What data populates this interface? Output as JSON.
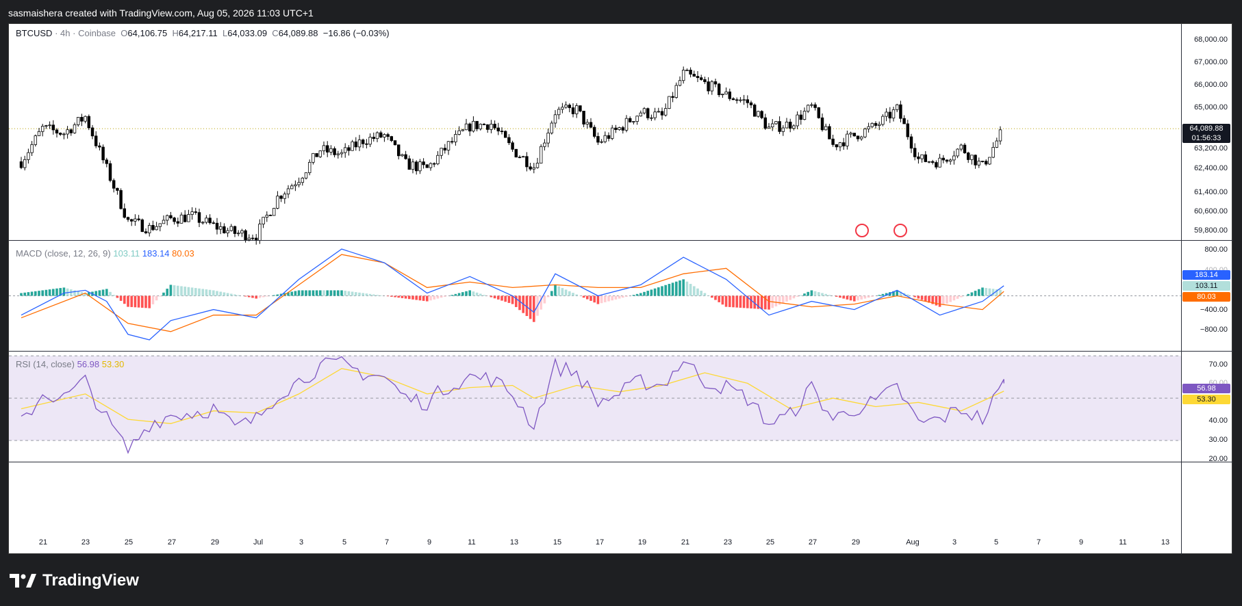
{
  "header": {
    "attribution": "sasmaishera created with TradingView.com, Aug 05, 2026 11:03 UTC+1"
  },
  "footer": {
    "brand": "TradingView"
  },
  "colors": {
    "up": "#ffffff",
    "down": "#000000",
    "macd_line": "#2962ff",
    "signal_line": "#ff6d00",
    "hist_up_strong": "#26a69a",
    "hist_up_weak": "#b2dfdb",
    "hist_down_strong": "#ff5252",
    "hist_down_weak": "#ffcdd2",
    "rsi_line": "#7e57c2",
    "rsi_ma": "#fdd835",
    "rsi_band": "#ede7f6"
  },
  "price_pane": {
    "symbol": "BTCUSD",
    "sep1": "·",
    "interval": "4h",
    "sep2": "·",
    "exchange": "Coinbase",
    "o_label": "O",
    "o_val": "64,106.75",
    "h_label": "H",
    "h_val": "64,217.11",
    "l_label": "L",
    "l_val": "64,033.09",
    "c_label": "C",
    "c_val": "64,089.88",
    "change": "−16.86 (−0.03%)",
    "last_price": "64,089.88",
    "countdown": "01:56:33",
    "axis_ticks": [
      "68,000.00",
      "67,000.00",
      "66,000.00",
      "65,000.00",
      "63,200.00",
      "62,400.00",
      "61,400.00",
      "60,600.00",
      "59,800.00"
    ]
  },
  "macd_pane": {
    "title": "MACD (close, 12, 26, 9)",
    "hist_val": "103.11",
    "macd_val": "183.14",
    "signal_val": "80.03",
    "axis_ticks": [
      "800.00",
      "400.00",
      "−400.00",
      "−800.00"
    ]
  },
  "rsi_pane": {
    "title": "RSI (14, close)",
    "rsi_val": "56.98",
    "ma_val": "53.30",
    "axis_ticks": [
      "70.00",
      "60.00",
      "40.00",
      "30.00",
      "20.00"
    ]
  },
  "time_axis": [
    "21",
    "23",
    "25",
    "27",
    "29",
    "Jul",
    "3",
    "5",
    "7",
    "9",
    "11",
    "13",
    "15",
    "17",
    "19",
    "21",
    "23",
    "25",
    "27",
    "29",
    "Aug",
    "3",
    "5",
    "7",
    "9",
    "11",
    "13"
  ],
  "chart_data": [
    {
      "type": "candlestick",
      "title": "BTCUSD · 4h · Coinbase",
      "x_range": [
        "Jun 20, 2026",
        "Aug 14, 2026"
      ],
      "ylim": [
        59400,
        68500
      ],
      "last_close": 64089.88,
      "close_path": [
        [
          "Jun 20",
          62700
        ],
        [
          "Jun 21",
          64100
        ],
        [
          "Jun 22",
          63900
        ],
        [
          "Jun 23",
          64600
        ],
        [
          "Jun 24",
          62400
        ],
        [
          "Jun 25",
          60200
        ],
        [
          "Jun 26",
          59900
        ],
        [
          "Jun 27",
          60300
        ],
        [
          "Jun 28",
          60400
        ],
        [
          "Jun 29",
          60000
        ],
        [
          "Jun 30",
          59700
        ],
        [
          "Jul 1",
          59600
        ],
        [
          "Jul 2",
          61200
        ],
        [
          "Jul 3",
          62000
        ],
        [
          "Jul 4",
          63200
        ],
        [
          "Jul 5",
          63000
        ],
        [
          "Jul 6",
          63600
        ],
        [
          "Jul 7",
          63800
        ],
        [
          "Jul 8",
          62600
        ],
        [
          "Jul 9",
          62400
        ],
        [
          "Jul 10",
          63400
        ],
        [
          "Jul 11",
          64200
        ],
        [
          "Jul 12",
          64300
        ],
        [
          "Jul 13",
          63200
        ],
        [
          "Jul 14",
          62500
        ],
        [
          "Jul 15",
          64800
        ],
        [
          "Jul 16",
          64900
        ],
        [
          "Jul 17",
          63500
        ],
        [
          "Jul 18",
          64100
        ],
        [
          "Jul 19",
          64800
        ],
        [
          "Jul 20",
          64600
        ],
        [
          "Jul 21",
          66400
        ],
        [
          "Jul 22",
          66000
        ],
        [
          "Jul 23",
          65500
        ],
        [
          "Jul 24",
          65200
        ],
        [
          "Jul 25",
          64100
        ],
        [
          "Jul 26",
          64300
        ],
        [
          "Jul 27",
          65000
        ],
        [
          "Jul 28",
          63400
        ],
        [
          "Jul 29",
          63800
        ],
        [
          "Jul 30",
          64200
        ],
        [
          "Jul 31",
          64900
        ],
        [
          "Aug 1",
          62800
        ],
        [
          "Aug 2",
          62700
        ],
        [
          "Aug 3",
          63300
        ],
        [
          "Aug 4",
          62500
        ],
        [
          "Aug 5",
          64100
        ]
      ]
    },
    {
      "type": "line",
      "title": "MACD (close, 12, 26, 9)",
      "ylim": [
        -1000,
        1000
      ],
      "series": [
        {
          "name": "MACD",
          "values": [
            [
              "Jun 20",
              -350
            ],
            [
              "Jun 22",
              50
            ],
            [
              "Jun 23",
              100
            ],
            [
              "Jun 24",
              -100
            ],
            [
              "Jun 25",
              -700
            ],
            [
              "Jun 26",
              -800
            ],
            [
              "Jun 27",
              -450
            ],
            [
              "Jun 29",
              -250
            ],
            [
              "Jul 1",
              -400
            ],
            [
              "Jul 3",
              300
            ],
            [
              "Jul 5",
              850
            ],
            [
              "Jul 7",
              600
            ],
            [
              "Jul 9",
              50
            ],
            [
              "Jul 11",
              350
            ],
            [
              "Jul 13",
              0
            ],
            [
              "Jul 14",
              -300
            ],
            [
              "Jul 15",
              400
            ],
            [
              "Jul 17",
              0
            ],
            [
              "Jul 19",
              200
            ],
            [
              "Jul 21",
              700
            ],
            [
              "Jul 23",
              300
            ],
            [
              "Jul 25",
              -350
            ],
            [
              "Jul 27",
              -100
            ],
            [
              "Jul 29",
              -250
            ],
            [
              "Jul 31",
              100
            ],
            [
              "Aug 2",
              -350
            ],
            [
              "Aug 4",
              -100
            ],
            [
              "Aug 5",
              183.14
            ]
          ]
        },
        {
          "name": "Signal",
          "values": [
            [
              "Jun 20",
              -400
            ],
            [
              "Jun 23",
              50
            ],
            [
              "Jun 25",
              -500
            ],
            [
              "Jun 27",
              -650
            ],
            [
              "Jun 29",
              -350
            ],
            [
              "Jul 1",
              -350
            ],
            [
              "Jul 3",
              200
            ],
            [
              "Jul 5",
              750
            ],
            [
              "Jul 7",
              600
            ],
            [
              "Jul 9",
              150
            ],
            [
              "Jul 11",
              250
            ],
            [
              "Jul 13",
              150
            ],
            [
              "Jul 15",
              200
            ],
            [
              "Jul 17",
              150
            ],
            [
              "Jul 19",
              150
            ],
            [
              "Jul 21",
              400
            ],
            [
              "Jul 23",
              500
            ],
            [
              "Jul 25",
              -100
            ],
            [
              "Jul 27",
              -200
            ],
            [
              "Jul 29",
              -150
            ],
            [
              "Jul 31",
              0
            ],
            [
              "Aug 2",
              -150
            ],
            [
              "Aug 4",
              -250
            ],
            [
              "Aug 5",
              80.03
            ]
          ]
        }
      ],
      "histogram_last": 103.11
    },
    {
      "type": "line",
      "title": "RSI (14, close)",
      "ylim": [
        20,
        72
      ],
      "bands": [
        30,
        50,
        70
      ],
      "series": [
        {
          "name": "RSI",
          "values": [
            [
              "Jun 20",
              38
            ],
            [
              "Jun 21",
              52
            ],
            [
              "Jun 22",
              50
            ],
            [
              "Jun 23",
              58
            ],
            [
              "Jun 24",
              40
            ],
            [
              "Jun 25",
              25
            ],
            [
              "Jun 26",
              38
            ],
            [
              "Jun 27",
              42
            ],
            [
              "Jun 28",
              43
            ],
            [
              "Jun 29",
              45
            ],
            [
              "Jun 30",
              36
            ],
            [
              "Jul 1",
              40
            ],
            [
              "Jul 2",
              52
            ],
            [
              "Jul 3",
              58
            ],
            [
              "Jul 4",
              65
            ],
            [
              "Jul 5",
              66
            ],
            [
              "Jul 6",
              62
            ],
            [
              "Jul 7",
              60
            ],
            [
              "Jul 8",
              50
            ],
            [
              "Jul 9",
              48
            ],
            [
              "Jul 10",
              56
            ],
            [
              "Jul 11",
              60
            ],
            [
              "Jul 12",
              59
            ],
            [
              "Jul 13",
              52
            ],
            [
              "Jul 14",
              37
            ],
            [
              "Jul 15",
              65
            ],
            [
              "Jul 16",
              62
            ],
            [
              "Jul 17",
              48
            ],
            [
              "Jul 18",
              52
            ],
            [
              "Jul 19",
              58
            ],
            [
              "Jul 20",
              56
            ],
            [
              "Jul 21",
              68
            ],
            [
              "Jul 22",
              58
            ],
            [
              "Jul 23",
              55
            ],
            [
              "Jul 24",
              50
            ],
            [
              "Jul 25",
              38
            ],
            [
              "Jul 26",
              42
            ],
            [
              "Jul 27",
              55
            ],
            [
              "Jul 28",
              40
            ],
            [
              "Jul 29",
              45
            ],
            [
              "Jul 30",
              48
            ],
            [
              "Jul 31",
              55
            ],
            [
              "Aug 1",
              38
            ],
            [
              "Aug 2",
              40
            ],
            [
              "Aug 3",
              45
            ],
            [
              "Aug 4",
              40
            ],
            [
              "Aug 5",
              56.98
            ]
          ]
        },
        {
          "name": "RSI-based MA",
          "values": [
            [
              "Jun 20",
              45
            ],
            [
              "Jun 23",
              52
            ],
            [
              "Jun 25",
              40
            ],
            [
              "Jun 27",
              38
            ],
            [
              "Jun 29",
              44
            ],
            [
              "Jul 1",
              43
            ],
            [
              "Jul 3",
              52
            ],
            [
              "Jul 5",
              64
            ],
            [
              "Jul 7",
              60
            ],
            [
              "Jul 9",
              52
            ],
            [
              "Jul 11",
              55
            ],
            [
              "Jul 13",
              56
            ],
            [
              "Jul 14",
              50
            ],
            [
              "Jul 16",
              56
            ],
            [
              "Jul 18",
              53
            ],
            [
              "Jul 20",
              56
            ],
            [
              "Jul 22",
              62
            ],
            [
              "Jul 24",
              57
            ],
            [
              "Jul 26",
              45
            ],
            [
              "Jul 28",
              50
            ],
            [
              "Jul 30",
              46
            ],
            [
              "Aug 1",
              48
            ],
            [
              "Aug 3",
              44
            ],
            [
              "Aug 5",
              53.3
            ]
          ]
        }
      ]
    }
  ]
}
